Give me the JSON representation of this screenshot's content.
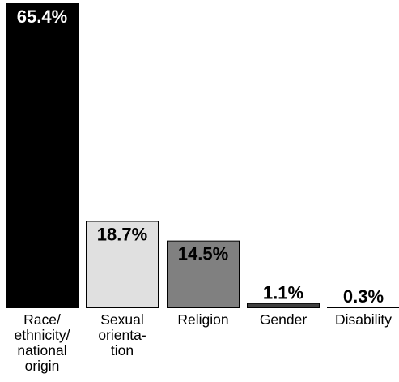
{
  "chart_data": {
    "type": "bar",
    "categories": [
      [
        "Race/",
        "ethnicity/",
        "national",
        "origin"
      ],
      [
        "Sexual",
        "orienta-",
        "tion"
      ],
      [
        "Religion"
      ],
      [
        "Gender"
      ],
      [
        "Disability"
      ]
    ],
    "values": [
      65.4,
      18.7,
      14.5,
      1.1,
      0.3
    ],
    "value_labels": [
      "65.4%",
      "18.7%",
      "14.5%",
      "1.1%",
      "0.3%"
    ],
    "ylim": [
      0,
      65.4
    ],
    "grid": false,
    "legend": "none",
    "colors": {
      "fills": [
        "#000000",
        "#e0e0e0",
        "#808080",
        "#404040",
        "#404040"
      ],
      "label_colors": [
        "#ffffff",
        "#000000",
        "#000000",
        "#000000",
        "#000000"
      ],
      "stroke": "#000000"
    }
  }
}
